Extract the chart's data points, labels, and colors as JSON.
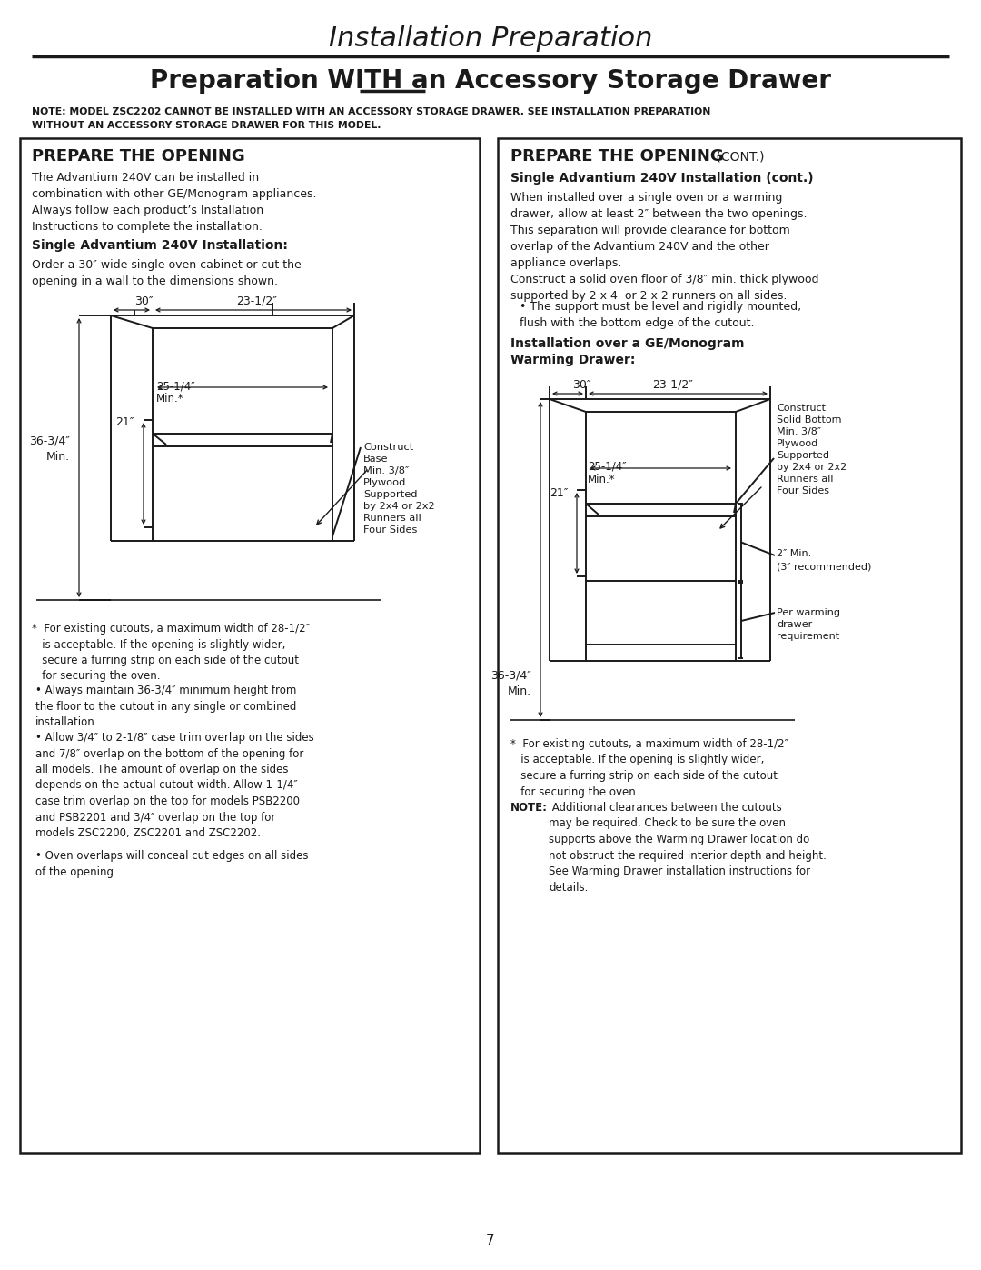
{
  "title": "Installation Preparation",
  "subtitle_pre": "Preparation ",
  "subtitle_with": "WITH",
  "subtitle_post": " an Accessory Storage Drawer",
  "note_line1": "NOTE: MODEL ZSC2202 CANNOT BE INSTALLED WITH AN ACCESSORY STORAGE DRAWER. SEE INSTALLATION PREPARATION",
  "note_line2": "WITHOUT AN ACCESSORY STORAGE DRAWER FOR THIS MODEL.",
  "left_title": "PREPARE THE OPENING",
  "left_body1": "The Advantium 240V can be installed in\ncombination with other GE/Monogram appliances.\nAlways follow each product’s Installation\nInstructions to complete the installation.",
  "left_sub1": "Single Advantium 240V Installation:",
  "left_body2": "Order a 30″ wide single oven cabinet or cut the\nopening in a wall to the dimensions shown.",
  "left_note": "*  For existing cutouts, a maximum width of 28-1/2″\n   is acceptable. If the opening is slightly wider,\n   secure a furring strip on each side of the cutout\n   for securing the oven.",
  "left_bullet1": "Always maintain 36-3/4″ minimum height from\nthe floor to the cutout in any single or combined\ninstallation.",
  "left_bullet2": "Allow 3/4″ to 2-1/8″ case trim overlap on the sides\nand 7/8″ overlap on the bottom of the opening for\nall models. The amount of overlap on the sides\ndepends on the actual cutout width. Allow 1-1/4″\ncase trim overlap on the top for models PSB2200\nand PSB2201 and 3/4″ overlap on the top for\nmodels ZSC2200, ZSC2201 and ZSC2202.",
  "left_bullet3": "Oven overlaps will conceal cut edges on all sides\nof the opening.",
  "right_title": "PREPARE THE OPENING",
  "right_title_cont": "(CONT.)",
  "right_sub1": "Single Advantium 240V Installation (cont.)",
  "right_body1": "When installed over a single oven or a warming\ndrawer, allow at least 2″ between the two openings.\nThis separation will provide clearance for bottom\noverlap of the Advantium 240V and the other\nappliance overlaps.",
  "right_body2": "Construct a solid oven floor of 3/8″ min. thick plywood\nsupported by 2 x 4  or 2 x 2 runners on all sides.",
  "right_bullet1_text": "The support must be level and rigidly mounted,\nflush with the bottom edge of the cutout.",
  "right_sub2_l1": "Installation over a GE/Monogram",
  "right_sub2_l2": "Warming Drawer:",
  "right_note": "*  For existing cutouts, a maximum width of 28-1/2″\n   is acceptable. If the opening is slightly wider,\n   secure a furring strip on each side of the cutout\n   for securing the oven.",
  "right_note2_bold": "NOTE:",
  "right_note2_body": " Additional clearances between the cutouts\nmay be required. Check to be sure the oven\nsupports above the Warming Drawer location do\nnot obstruct the required interior depth and height.\nSee Warming Drawer installation instructions for\ndetails.",
  "page_num": "7",
  "fg": "#1a1a1a",
  "bg": "#ffffff"
}
